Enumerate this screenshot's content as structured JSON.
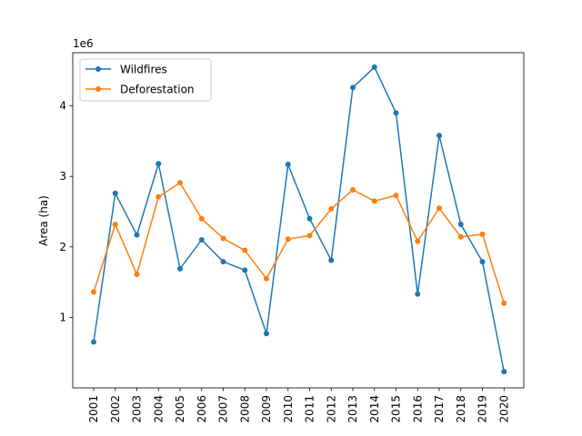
{
  "chart_data": {
    "type": "line",
    "title": "",
    "xlabel": "",
    "ylabel": "Area (ha)",
    "y_offset_label": "1e6",
    "y_multiplier": 1000000,
    "x": [
      "2001",
      "2002",
      "2003",
      "2004",
      "2005",
      "2006",
      "2007",
      "2008",
      "2009",
      "2010",
      "2011",
      "2012",
      "2013",
      "2014",
      "2015",
      "2016",
      "2017",
      "2018",
      "2019",
      "2020"
    ],
    "yticks": [
      1,
      2,
      3,
      4
    ],
    "ylim": [
      0.0,
      4.75
    ],
    "grid": false,
    "legend_position": "upper-left",
    "series": [
      {
        "name": "Wildfires",
        "color": "#1f77b4",
        "values": [
          0.65,
          2.76,
          2.17,
          3.18,
          1.69,
          2.1,
          1.79,
          1.67,
          0.77,
          3.17,
          2.4,
          1.81,
          4.26,
          4.55,
          3.9,
          1.33,
          3.58,
          2.32,
          1.79,
          0.23
        ]
      },
      {
        "name": "Deforestation",
        "color": "#ff7f0e",
        "values": [
          1.36,
          2.32,
          1.61,
          2.71,
          2.91,
          2.4,
          2.12,
          1.95,
          1.55,
          2.11,
          2.16,
          2.54,
          2.81,
          2.65,
          2.73,
          2.08,
          2.55,
          2.14,
          2.18,
          1.2
        ]
      }
    ]
  }
}
